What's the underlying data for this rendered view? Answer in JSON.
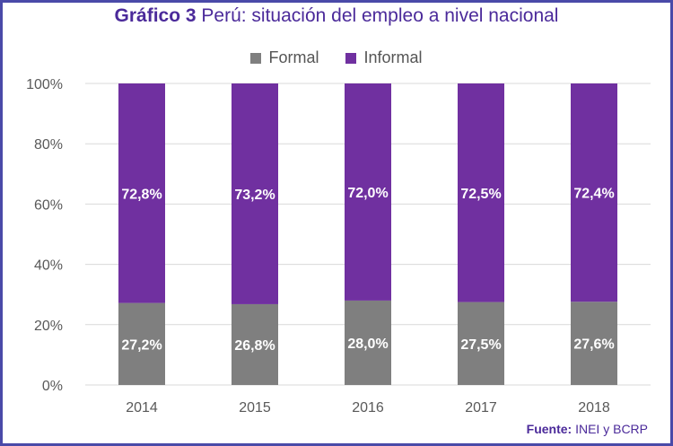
{
  "title": {
    "prefix": "Gráfico  3",
    "text": " Perú: situación del empleo a nivel nacional"
  },
  "source": {
    "label": "Fuente:",
    "text": " INEI y BCRP"
  },
  "chart_data": {
    "type": "bar",
    "stacked": true,
    "categories": [
      "2014",
      "2015",
      "2016",
      "2017",
      "2018"
    ],
    "series": [
      {
        "name": "Formal",
        "values": [
          27.2,
          26.8,
          28.0,
          27.5,
          27.6
        ],
        "labels": [
          "27,2%",
          "26,8%",
          "28,0%",
          "27,5%",
          "27,6%"
        ],
        "color": "#7f7f7f"
      },
      {
        "name": "Informal",
        "values": [
          72.8,
          73.2,
          72.0,
          72.5,
          72.4
        ],
        "labels": [
          "72,8%",
          "73,2%",
          "72,0%",
          "72,5%",
          "72,4%"
        ],
        "color": "#7030a0"
      }
    ],
    "yticks": [
      "0%",
      "20%",
      "40%",
      "60%",
      "80%",
      "100%"
    ],
    "ylim": [
      0,
      100
    ],
    "legend_position": "top",
    "grid": true
  }
}
